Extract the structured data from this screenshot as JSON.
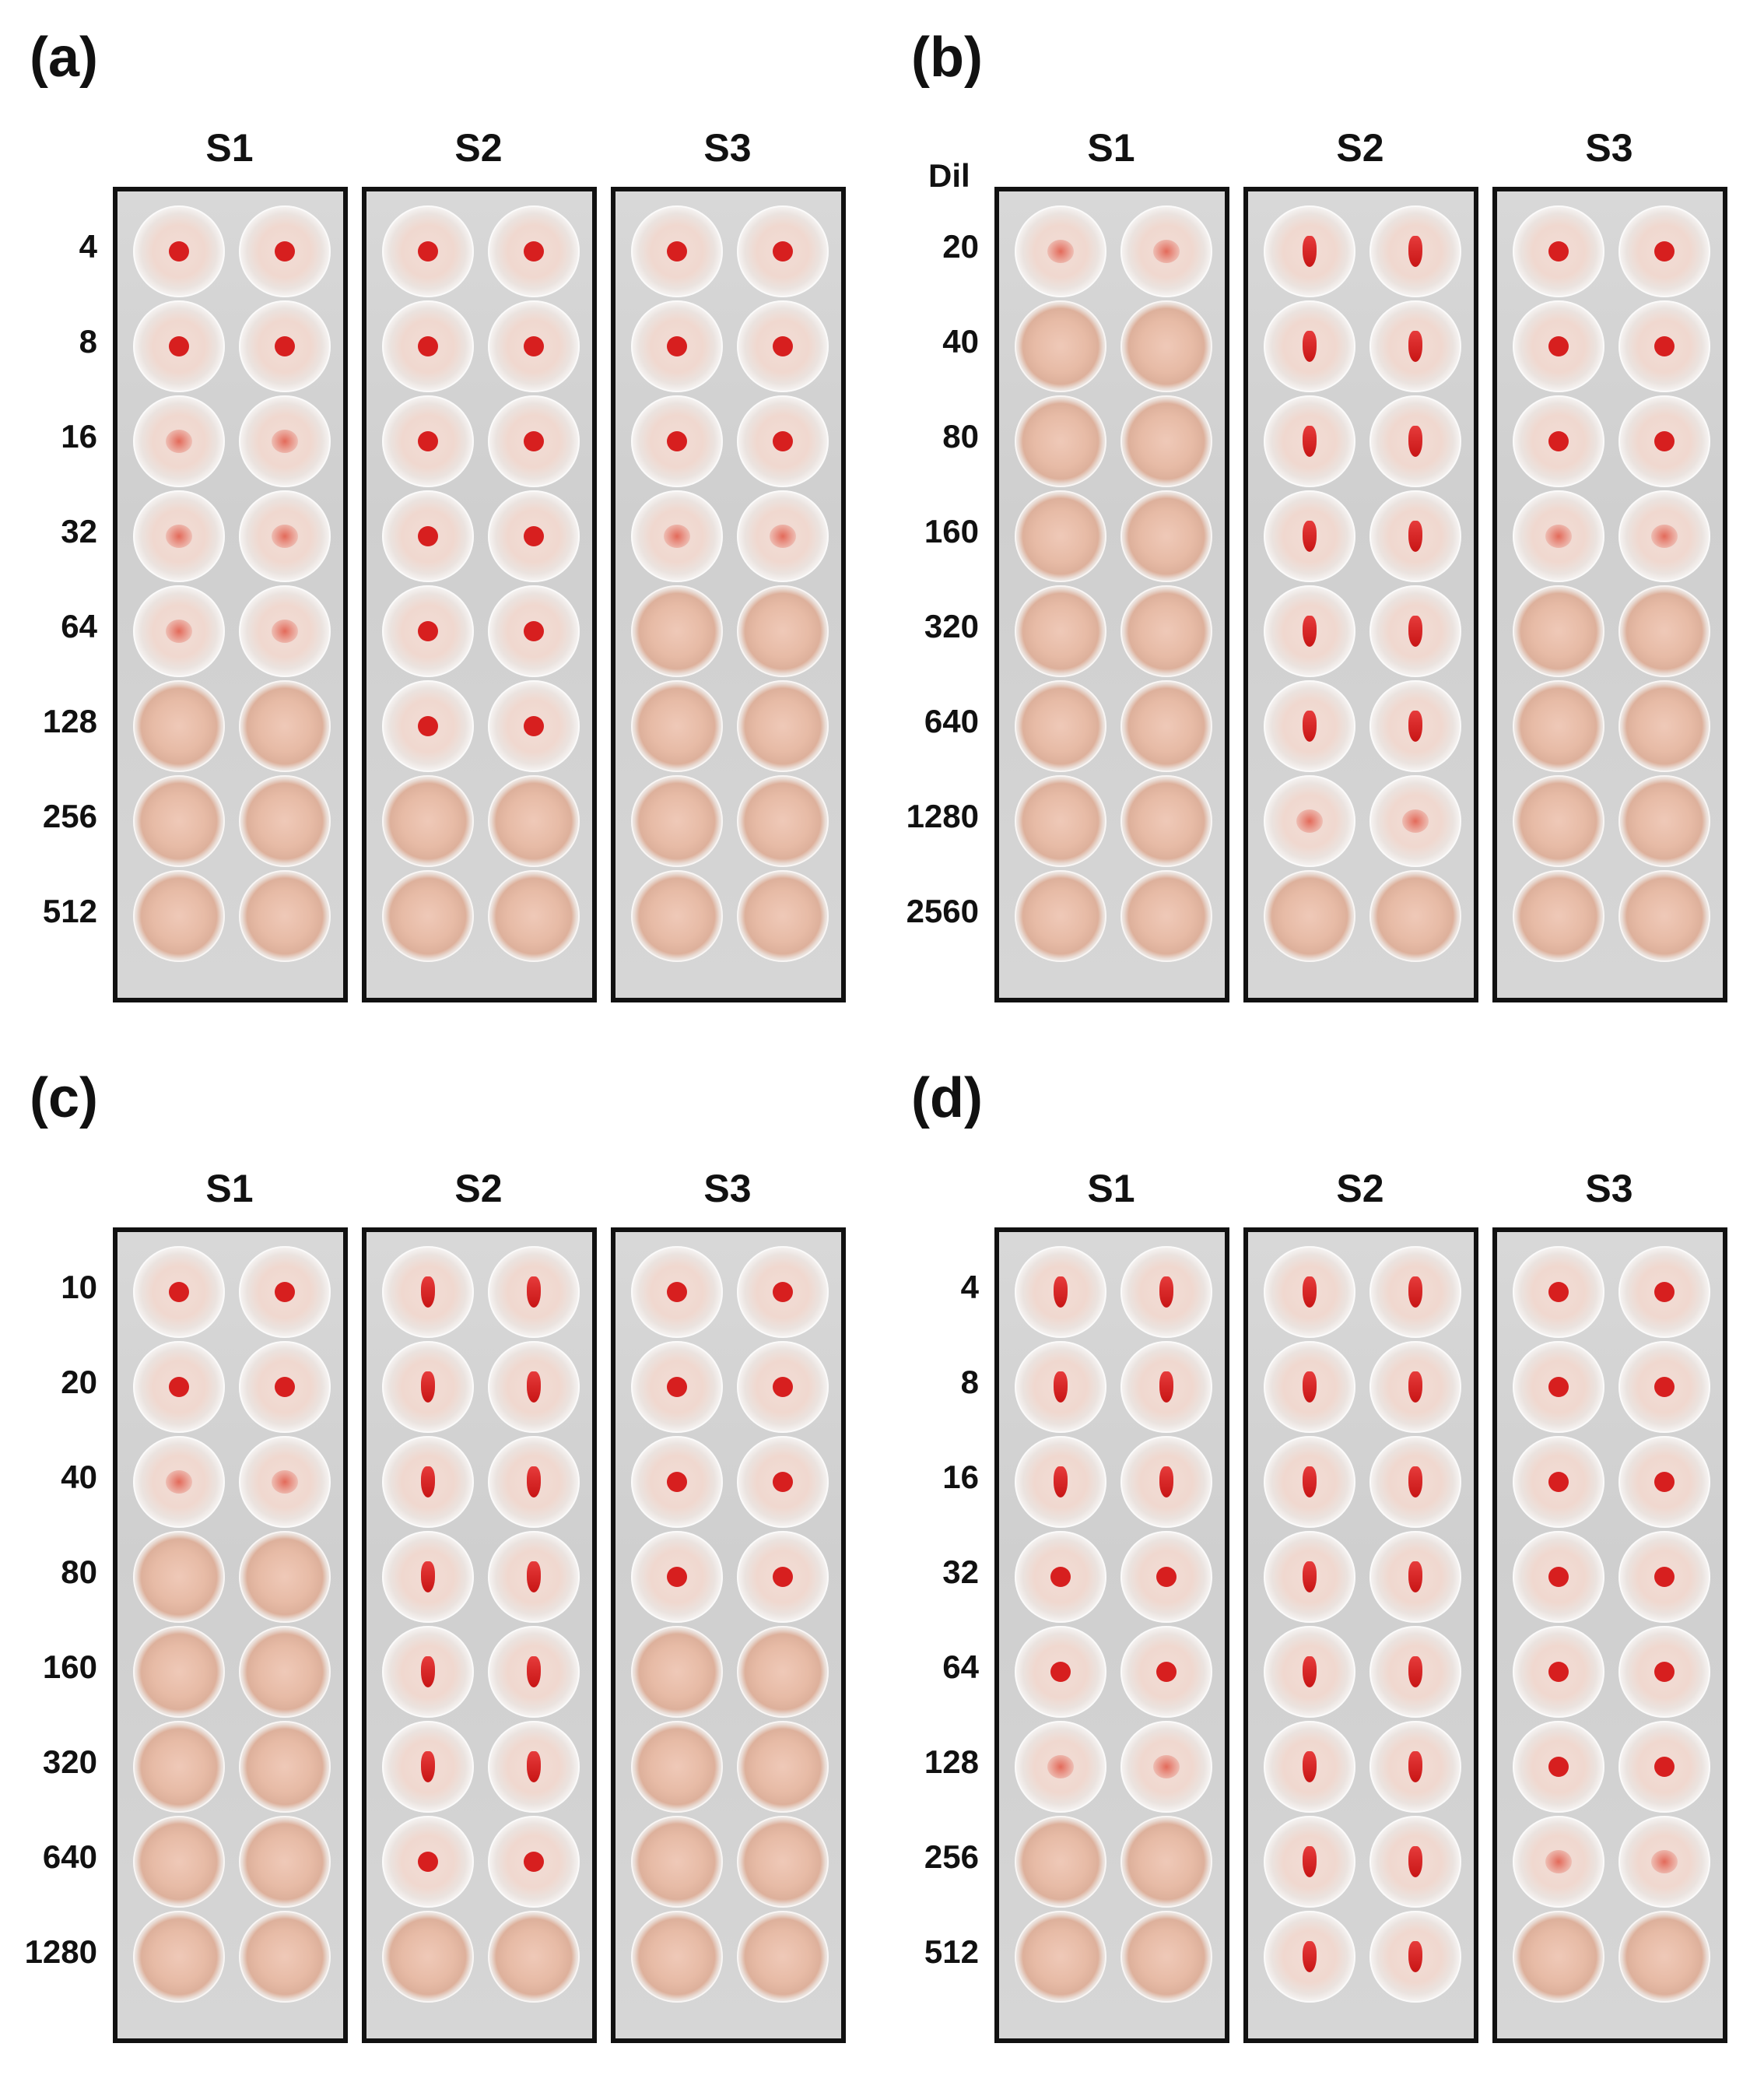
{
  "panels": [
    {
      "id": "a",
      "label": "(a)",
      "dil_label": "",
      "columns": [
        "S1",
        "S2",
        "S3"
      ],
      "rows": [
        "4",
        "8",
        "16",
        "32",
        "64",
        "128",
        "256",
        "512"
      ],
      "patterns": [
        [
          "button",
          "button",
          "diffuse",
          "diffuse",
          "diffuse",
          "none",
          "none",
          "none"
        ],
        [
          "button",
          "button",
          "button",
          "button",
          "button",
          "button",
          "none",
          "none"
        ],
        [
          "button",
          "button",
          "button",
          "diffuse",
          "none",
          "none",
          "none",
          "none"
        ]
      ]
    },
    {
      "id": "b",
      "label": "(b)",
      "dil_label": "Dil",
      "columns": [
        "S1",
        "S2",
        "S3"
      ],
      "rows": [
        "20",
        "40",
        "80",
        "160",
        "320",
        "640",
        "1280",
        "2560"
      ],
      "patterns": [
        [
          "diffuse",
          "none",
          "none",
          "none",
          "none",
          "none",
          "none",
          "none"
        ],
        [
          "tear",
          "tear",
          "tear",
          "tear",
          "tear",
          "tear",
          "diffuse",
          "none"
        ],
        [
          "button",
          "button",
          "button",
          "diffuse",
          "none",
          "none",
          "none",
          "none"
        ]
      ]
    },
    {
      "id": "c",
      "label": "(c)",
      "dil_label": "",
      "columns": [
        "S1",
        "S2",
        "S3"
      ],
      "rows": [
        "10",
        "20",
        "40",
        "80",
        "160",
        "320",
        "640",
        "1280"
      ],
      "patterns": [
        [
          "button",
          "button",
          "diffuse",
          "none",
          "none",
          "none",
          "none",
          "none"
        ],
        [
          "tear",
          "tear",
          "tear",
          "tear",
          "tear",
          "tear",
          "button",
          "none"
        ],
        [
          "button",
          "button",
          "button",
          "button",
          "none",
          "none",
          "none",
          "none"
        ]
      ]
    },
    {
      "id": "d",
      "label": "(d)",
      "dil_label": "",
      "columns": [
        "S1",
        "S2",
        "S3"
      ],
      "rows": [
        "4",
        "8",
        "16",
        "32",
        "64",
        "128",
        "256",
        "512"
      ],
      "patterns": [
        [
          "tear",
          "tear",
          "tear",
          "button",
          "button",
          "diffuse",
          "none",
          "none"
        ],
        [
          "tear",
          "tear",
          "tear",
          "tear",
          "tear",
          "tear",
          "tear",
          "tear"
        ],
        [
          "button",
          "button",
          "button",
          "button",
          "button",
          "button",
          "diffuse",
          "none"
        ]
      ]
    }
  ]
}
